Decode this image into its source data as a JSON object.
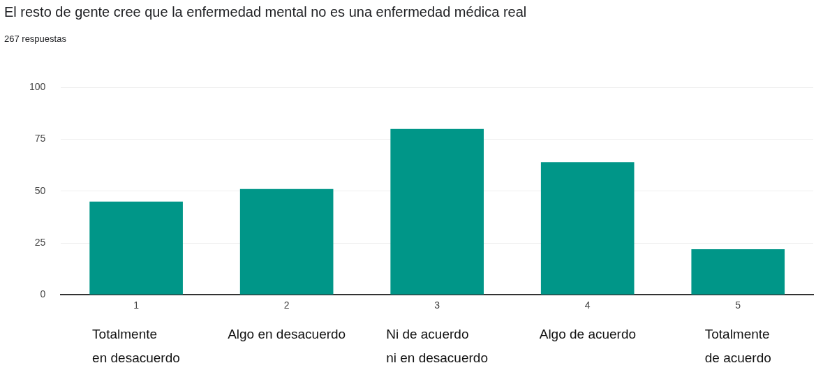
{
  "chart_data": {
    "type": "bar",
    "title": "El resto de gente cree que la enfermedad mental no es una enfermedad médica real",
    "subtitle": "267 respuestas",
    "categories": [
      "1",
      "2",
      "3",
      "4",
      "5"
    ],
    "values": [
      45,
      51,
      80,
      64,
      22
    ],
    "color": "#009688",
    "ylim": [
      0,
      100
    ],
    "yticks": [
      0,
      25,
      50,
      75,
      100
    ],
    "grid": "y",
    "legend": false,
    "annotations": [
      "Totalmente\nen desacuerdo",
      "Algo en desacuerdo",
      "Ni de acuerdo\nni en desacuerdo",
      "Algo de acuerdo",
      "Totalmente\nde acuerdo"
    ]
  }
}
